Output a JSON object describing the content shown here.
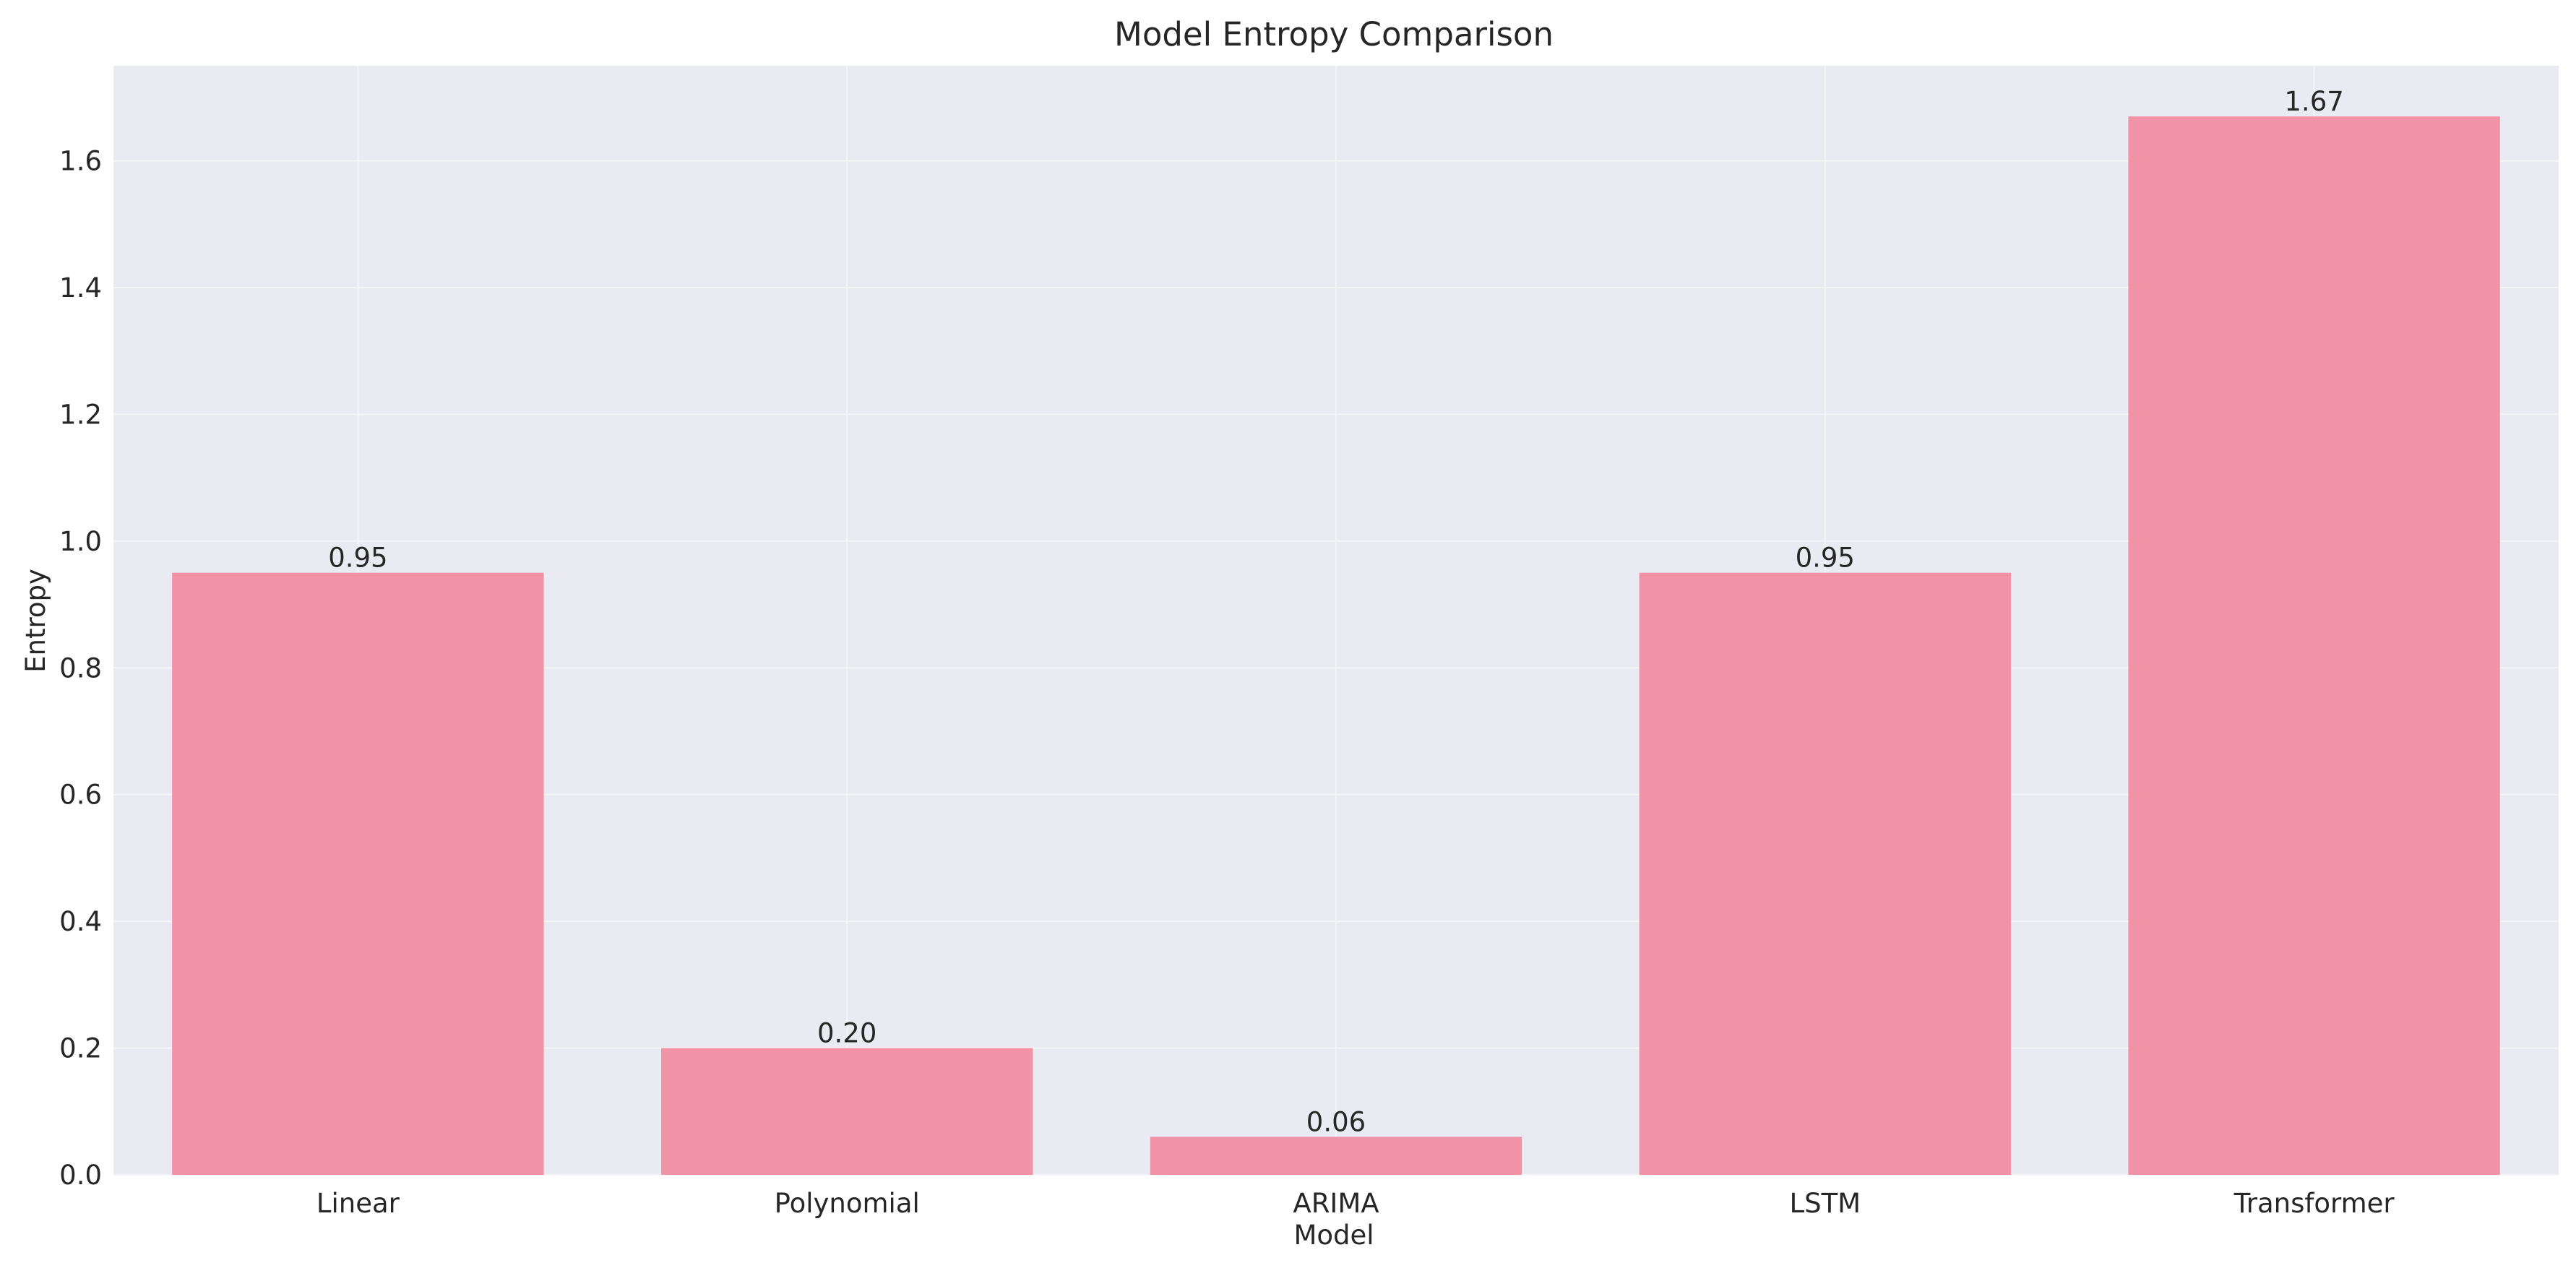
{
  "chart_data": {
    "type": "bar",
    "title": "Model Entropy Comparison",
    "xlabel": "Model",
    "ylabel": "Entropy",
    "categories": [
      "Linear",
      "Polynomial",
      "ARIMA",
      "LSTM",
      "Transformer"
    ],
    "values": [
      0.95,
      0.2,
      0.06,
      0.95,
      1.67
    ],
    "value_labels": [
      "0.95",
      "0.20",
      "0.06",
      "0.95",
      "1.67"
    ],
    "ylim": [
      0,
      1.75
    ],
    "yticks": [
      0.0,
      0.2,
      0.4,
      0.6,
      0.8,
      1.0,
      1.2,
      1.4,
      1.6
    ],
    "ytick_labels": [
      "0.0",
      "0.2",
      "0.4",
      "0.6",
      "0.8",
      "1.0",
      "1.2",
      "1.4",
      "1.6"
    ],
    "grid": true,
    "colors": {
      "bar": "#f093a6",
      "plot_background": "#eaeaf2",
      "grid": "#f5f5f8",
      "text": "#262626"
    }
  }
}
